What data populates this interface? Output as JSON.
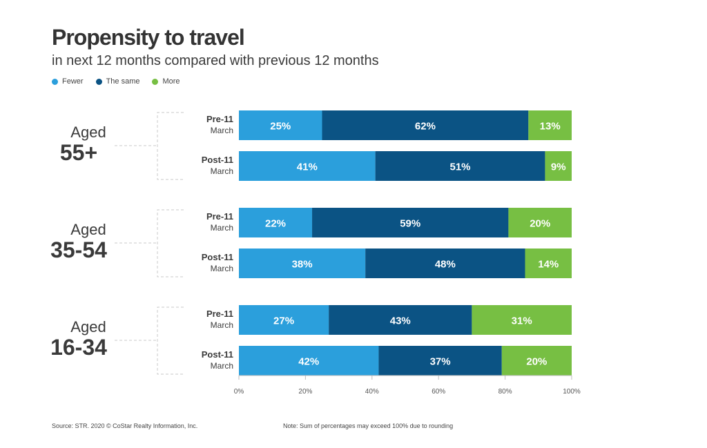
{
  "title": "Propensity to travel",
  "subtitle": "in next 12 months compared with previous 12 months",
  "legend": [
    {
      "label": "Fewer",
      "color": "#2b9fdc"
    },
    {
      "label": "The same",
      "color": "#0b5384"
    },
    {
      "label": "More",
      "color": "#77bf43"
    }
  ],
  "footer": {
    "source": "Source: STR. 2020 © CoStar Realty Information, Inc.",
    "note": "Note: Sum of percentages may exceed 100% due to rounding"
  },
  "chart_data": {
    "type": "bar",
    "orientation": "horizontal",
    "stacked": true,
    "title": "Propensity to travel",
    "subtitle": "in next 12 months compared with previous 12 months",
    "xlim": [
      0,
      100
    ],
    "x_ticks": [
      "0%",
      "20%",
      "40%",
      "60%",
      "80%",
      "100%"
    ],
    "series_names": [
      "Fewer",
      "The same",
      "More"
    ],
    "colors": [
      "#2b9fdc",
      "#0b5384",
      "#77bf43"
    ],
    "groups": [
      {
        "label_line1": "Aged",
        "label_line2": "55+",
        "bars": [
          {
            "label_line1": "Pre-11",
            "label_line2": "March",
            "values": [
              25,
              62,
              13
            ]
          },
          {
            "label_line1": "Post-11",
            "label_line2": "March",
            "values": [
              41,
              51,
              9
            ]
          }
        ]
      },
      {
        "label_line1": "Aged",
        "label_line2": "35-54",
        "bars": [
          {
            "label_line1": "Pre-11",
            "label_line2": "March",
            "values": [
              22,
              59,
              20
            ]
          },
          {
            "label_line1": "Post-11",
            "label_line2": "March",
            "values": [
              38,
              48,
              14
            ]
          }
        ]
      },
      {
        "label_line1": "Aged",
        "label_line2": "16-34",
        "bars": [
          {
            "label_line1": "Pre-11",
            "label_line2": "March",
            "values": [
              27,
              43,
              31
            ]
          },
          {
            "label_line1": "Post-11",
            "label_line2": "March",
            "values": [
              42,
              37,
              20
            ]
          }
        ]
      }
    ]
  }
}
